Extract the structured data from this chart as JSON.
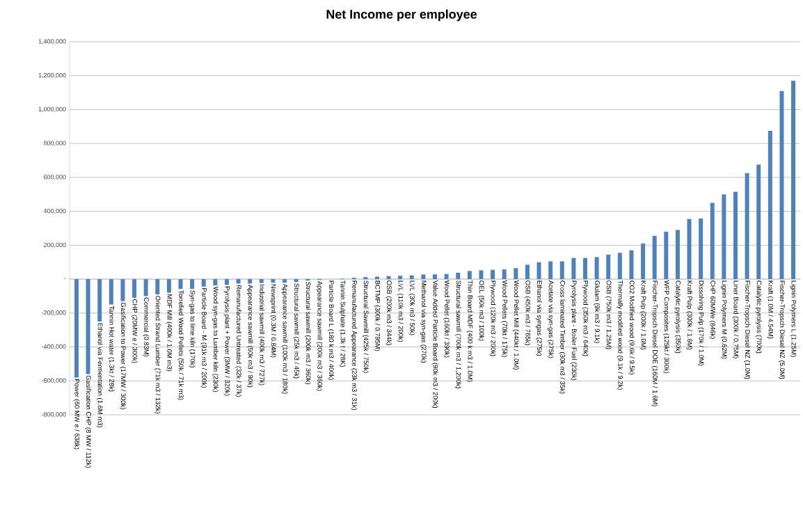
{
  "chart_data": {
    "type": "bar",
    "title": "Net Income per employee",
    "categories": [
      "Power (60 MW e / 638k)",
      "Gasification CHP (8 MW / 112k)",
      "Ethanol via Fermentation (1.6M m3)",
      "Tannin Hot water (1.3kt / 28k)",
      "Gasification to Power (17MW / 300k)",
      "CHP (20MW e / 300k)",
      "Commercial (0.83M)",
      "Oriented Strand Lumber (71k m3 / 132k)",
      "MDF Mill (400k / 1.0M m3)",
      "Torrefied Wood Pellets (50k / 71k m3)",
      "Syn-gas to lime kiln (170k)",
      "Particle Board - M (91k m3 / 200k)",
      "Wood syn-gas to Lumber kiln (230k)",
      "Pyrolysis plant + Power (3MW / 320k)",
      "Remanufactured Untreated (32k / 37k)",
      "Appearance sawmill (50k m3 / 90k)",
      "Industrial sawmill (400k m3 / 727k)",
      "Newsprint (0.3M / 0.84M)",
      "Appearance sawmill (100k m3 / 180k)",
      "Structural sawmill (25k m3 / 45k)",
      "Structural sawmill (200k m3 / 360k)",
      "Appearance sawmill (200k m3 / 360k)",
      "Particle Board L (180 k m3 / 400k)",
      "Tannin Sulphate (1.3k t / 28K)",
      "Remanufactured Appearance (23k m3 / 31k)",
      "Structural Sawmill (425k / 750k)",
      "BCTMP (300k / 0.795M)",
      "OSB (200k m3 / 344k)",
      "LVL (110k m3 / 200k)",
      "LVL (30k m3 / 50k)",
      "Methanol via syn-gas (270k)",
      "Value Added Particle Board (90k m3 / 200k)",
      "Wood Pellet (160kt / 390k)",
      "Structural sawmill (700k m3 / 1,200k)",
      "Thin Board MDF (400 k m3 / 1.0M)",
      "OEL (50k m3 / 100k)",
      "Plywood (120k m3 / 200k)",
      "Wood Pellets (70kt / 175k)",
      "Wood Pellet Mill (440kt / 1.0M)",
      "OSB (450k m3 / 765k)",
      "Ethanol via syngas (275k)",
      "Acetate via syn-gas (275k)",
      "Cross laminated Timber (30k m3 / 35k)",
      "Pyrolysis plant - Boiler Fuel (230k)",
      "Plywood (350k m3 / 640k)",
      "Glulam (9k m3 / 9.1k)",
      "OSB (750k m3 / 1.25M)",
      "Thermally modified wood (9.1k / 9.2k)",
      "CO2 Modified wood (9.6k / 9.5k)",
      "Kraft Pulp (200k / 1.0M)",
      "Fischer-Tropsch Diesel DOE (160M / 1.6M)",
      "WFP Composites (125kt / 300k)",
      "Catalytic pyrolysis (350k)",
      "Kraft Pulp (300k / 1.6M)",
      "Dissolving Pulp (170k / 1.0M)",
      "CHP 60MWe (846k)",
      "Lignin Polymers M (0.62M)",
      "Liner Board (300k / 0.75M)",
      "Fischer-Tropsch Diesel NZ (1.0M)",
      "Catalytic pyrolysis (700k)",
      "Kraft (1.0M / 4.54M)",
      "Fischer-Tropsch Diesel NZ (5.0M)",
      "Lignin Polymers L (1.25M)"
    ],
    "values": [
      -580000,
      -560000,
      -250000,
      -150000,
      -130000,
      -110000,
      -100000,
      -90000,
      -80000,
      -58000,
      -58000,
      -44000,
      -37000,
      -34000,
      -26000,
      -26000,
      -23000,
      -21000,
      -21000,
      -17000,
      -8000,
      -4000,
      null,
      3000,
      8000,
      12000,
      15000,
      18000,
      20000,
      22000,
      27000,
      28000,
      30000,
      38000,
      48000,
      52000,
      55000,
      57000,
      65000,
      85000,
      100000,
      105000,
      105000,
      125000,
      125000,
      130000,
      145000,
      155000,
      170000,
      210000,
      255000,
      280000,
      290000,
      355000,
      357000,
      450000,
      500000,
      515000,
      625000,
      675000,
      875000,
      1110000,
      1170000
    ],
    "color": "#4f81bd",
    "ylim": [
      -800000,
      1400000
    ],
    "yticks": [
      {
        "value": -800000,
        "label": "-800,000"
      },
      {
        "value": -600000,
        "label": "-600,000"
      },
      {
        "value": -400000,
        "label": "-400,000"
      },
      {
        "value": -200000,
        "label": "-200,000"
      },
      {
        "value": 0,
        "label": "-"
      },
      {
        "value": 200000,
        "label": "200,000"
      },
      {
        "value": 400000,
        "label": "400,000"
      },
      {
        "value": 600000,
        "label": "600,000"
      },
      {
        "value": 800000,
        "label": "800,000"
      },
      {
        "value": 1000000,
        "label": "1,000,000"
      },
      {
        "value": 1200000,
        "label": "1,200,000"
      },
      {
        "value": 1400000,
        "label": "1,400,000"
      }
    ],
    "grid": "y"
  }
}
